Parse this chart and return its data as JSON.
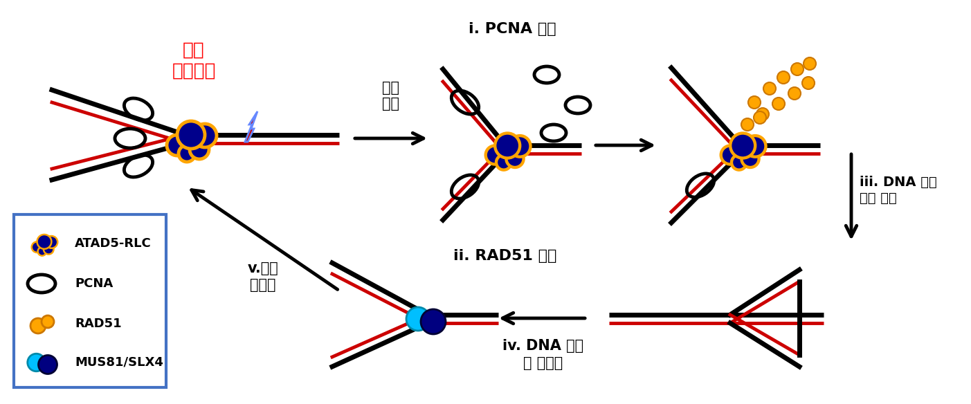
{
  "stress_label": "복제\n스트레스",
  "arrow1_label": "복제\n중지",
  "step1_label": "i. PCNA 분리",
  "step2_label": "ii. RAD51 소집",
  "step3_label": "iii. DNA 구조\n변화 유도",
  "step4_label": "iv. DNA 절단\n및 재조합",
  "step5_label": "v.복제\n재시작",
  "legend_items": [
    "ATAD5-RLC",
    "PCNA",
    "RAD51",
    "MUS81/SLX4"
  ],
  "bg_color": "#ffffff",
  "dna_red": "#cc0000",
  "atad5_orange": "#FFA500",
  "atad5_blue": "#00008B",
  "rad51_color": "#FFA500",
  "mus81_cyan": "#00BFFF",
  "mus81_blue": "#000080",
  "lightning_red": "#cc0000",
  "lightning_blue": "#6688ff",
  "legend_border": "#4472C4",
  "label_red": "#ff0000",
  "label_black": "#000000"
}
